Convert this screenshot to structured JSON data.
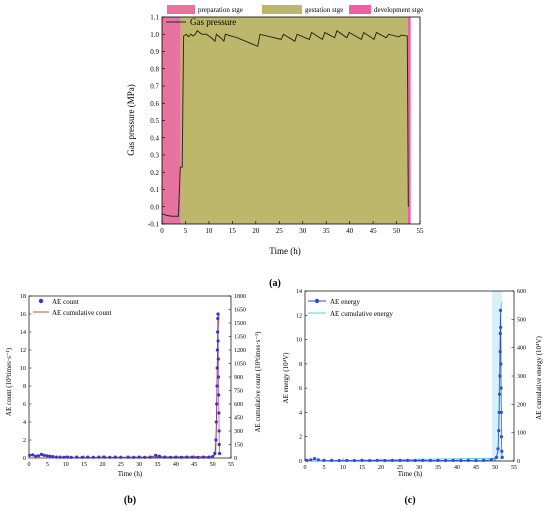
{
  "chart_data": [
    {
      "id": "a",
      "type": "line",
      "caption": "(a)",
      "xlabel": "Time (h)",
      "ylabel": "Gas pressure (MPa)",
      "xlim": [
        0,
        55
      ],
      "ylim": [
        -0.1,
        1.1
      ],
      "xticks": [
        "0",
        "5",
        "10",
        "15",
        "20",
        "25",
        "30",
        "35",
        "40",
        "45",
        "50",
        "55"
      ],
      "yticks": [
        "-0.1",
        "0.0",
        "0.1",
        "0.2",
        "0.3",
        "0.4",
        "0.5",
        "0.6",
        "0.7",
        "0.8",
        "0.9",
        "1.0",
        "1.1"
      ],
      "stages": [
        {
          "label": "preparation stge",
          "x0": 0,
          "x1": 4,
          "color": "#e8739e"
        },
        {
          "label": "gestation stge",
          "x0": 4,
          "x1": 52.4,
          "color": "#bdb76b"
        },
        {
          "label": "development stge",
          "x0": 52.4,
          "x1": 53,
          "color": "#ee5fa7"
        }
      ],
      "series": [
        {
          "name": "Gas pressure",
          "color": "#2a2a1a",
          "points": [
            [
              0,
              -0.04
            ],
            [
              1,
              -0.05
            ],
            [
              2,
              -0.055
            ],
            [
              3.5,
              -0.055
            ],
            [
              3.9,
              0.23
            ],
            [
              4.3,
              0.23
            ],
            [
              4.6,
              0.99
            ],
            [
              5.2,
              1.0
            ],
            [
              5.6,
              0.985
            ],
            [
              6.2,
              1.0
            ],
            [
              6.6,
              0.99
            ],
            [
              7.1,
              1.0
            ],
            [
              7.5,
              1.02
            ],
            [
              8.5,
              1.0
            ],
            [
              9.5,
              1.0
            ],
            [
              10.5,
              0.98
            ],
            [
              11.3,
              0.96
            ],
            [
              11.6,
              1.0
            ],
            [
              12.5,
              0.98
            ],
            [
              13.2,
              0.96
            ],
            [
              13.5,
              1.0
            ],
            [
              16,
              0.98
            ],
            [
              20.4,
              0.93
            ],
            [
              20.9,
              1.0
            ],
            [
              25.4,
              0.97
            ],
            [
              25.9,
              1.0
            ],
            [
              28.3,
              0.96
            ],
            [
              28.8,
              1.0
            ],
            [
              31.4,
              0.97
            ],
            [
              31.9,
              1.01
            ],
            [
              34.2,
              0.97
            ],
            [
              34.7,
              1.01
            ],
            [
              36.8,
              0.98
            ],
            [
              37.3,
              1.02
            ],
            [
              39.4,
              0.98
            ],
            [
              39.9,
              1.01
            ],
            [
              42.5,
              0.97
            ],
            [
              43.0,
              1.01
            ],
            [
              45.2,
              0.97
            ],
            [
              45.7,
              1.01
            ],
            [
              47.8,
              0.98
            ],
            [
              48.3,
              1.0
            ],
            [
              50.5,
              0.985
            ],
            [
              51.0,
              0.995
            ],
            [
              52.3,
              0.99
            ],
            [
              52.5,
              0.0
            ]
          ]
        }
      ]
    },
    {
      "id": "b",
      "type": "scatter",
      "caption": "(b)",
      "xlabel": "Time (h)",
      "ylabel": "AE count (10³times·s⁻¹)",
      "y2label": "AE cumulative count (10³times·s⁻¹)",
      "xlim": [
        0,
        55
      ],
      "ylim": [
        0,
        18
      ],
      "y2lim": [
        0,
        1800
      ],
      "xticks": [
        "0",
        "5",
        "10",
        "15",
        "20",
        "25",
        "30",
        "35",
        "40",
        "45",
        "50",
        "55"
      ],
      "yticks": [
        "0",
        "2",
        "4",
        "6",
        "8",
        "10",
        "12",
        "14",
        "16",
        "18"
      ],
      "y2ticks": [
        "0",
        "150",
        "300",
        "450",
        "600",
        "750",
        "900",
        "1050",
        "1200",
        "1350",
        "1500",
        "1650",
        "1800"
      ],
      "series": [
        {
          "name": "AE count",
          "color": "#3535c8",
          "marker": "circle",
          "points": [
            [
              0.2,
              0.3
            ],
            [
              1,
              0.35
            ],
            [
              1.8,
              0.2
            ],
            [
              2.6,
              0.25
            ],
            [
              3.4,
              0.4
            ],
            [
              4.1,
              0.3
            ],
            [
              4.9,
              0.25
            ],
            [
              5.7,
              0.2
            ],
            [
              6.5,
              0.15
            ],
            [
              7.5,
              0.1
            ],
            [
              8.5,
              0.1
            ],
            [
              9.5,
              0.08
            ],
            [
              10.5,
              0.1
            ],
            [
              11.5,
              0.08
            ],
            [
              13,
              0.1
            ],
            [
              14.5,
              0.08
            ],
            [
              16,
              0.1
            ],
            [
              17.5,
              0.08
            ],
            [
              19,
              0.1
            ],
            [
              20.5,
              0.1
            ],
            [
              22,
              0.08
            ],
            [
              23.5,
              0.1
            ],
            [
              25,
              0.08
            ],
            [
              27,
              0.1
            ],
            [
              28.5,
              0.08
            ],
            [
              30,
              0.1
            ],
            [
              31.5,
              0.08
            ],
            [
              33,
              0.1
            ],
            [
              34.5,
              0.3
            ],
            [
              35.5,
              0.2
            ],
            [
              37,
              0.1
            ],
            [
              38.5,
              0.08
            ],
            [
              40,
              0.1
            ],
            [
              41.5,
              0.08
            ],
            [
              43,
              0.1
            ],
            [
              44.5,
              0.1
            ],
            [
              46,
              0.08
            ],
            [
              47.5,
              0.1
            ],
            [
              49,
              0.1
            ],
            [
              50,
              0.15
            ],
            [
              50.6,
              0.5
            ],
            [
              50.9,
              2
            ],
            [
              51.0,
              4
            ],
            [
              51.1,
              6
            ],
            [
              51.2,
              8
            ],
            [
              51.25,
              10
            ],
            [
              51.3,
              12
            ],
            [
              51.35,
              14
            ],
            [
              51.4,
              15.5
            ],
            [
              51.45,
              16
            ],
            [
              51.5,
              13
            ],
            [
              51.55,
              11
            ],
            [
              51.6,
              9
            ],
            [
              51.65,
              7
            ],
            [
              51.7,
              5
            ],
            [
              51.75,
              3
            ],
            [
              51.8,
              1.5
            ],
            [
              51.9,
              0.5
            ]
          ]
        },
        {
          "name": "AE cumulative count",
          "color": "#c0503a",
          "points": [
            [
              0,
              0
            ],
            [
              50,
              15
            ],
            [
              50.8,
              40
            ],
            [
              51,
              300
            ],
            [
              51.2,
              800
            ],
            [
              51.4,
              1300
            ],
            [
              51.6,
              1560
            ],
            [
              51.8,
              1600
            ]
          ]
        }
      ]
    },
    {
      "id": "c",
      "type": "scatter",
      "caption": "(c)",
      "xlabel": "Time (h)",
      "ylabel": "AE energy (10⁴V)",
      "y2label": "AE cumulative energy (10⁴V)",
      "xlim": [
        0,
        55
      ],
      "ylim": [
        0,
        14
      ],
      "y2lim": [
        0,
        600
      ],
      "xticks": [
        "0",
        "5",
        "10",
        "15",
        "20",
        "25",
        "30",
        "35",
        "40",
        "45",
        "50",
        "55"
      ],
      "yticks": [
        "0",
        "2",
        "4",
        "6",
        "8",
        "10",
        "12",
        "14"
      ],
      "y2ticks": [
        "0",
        "100",
        "200",
        "300",
        "400",
        "500",
        "600"
      ],
      "series": [
        {
          "name": "AE energy",
          "color": "#2b4fd6",
          "marker": "circle",
          "points": [
            [
              0.5,
              0.05
            ],
            [
              1.5,
              0.1
            ],
            [
              2.5,
              0.2
            ],
            [
              3.5,
              0.1
            ],
            [
              5,
              0.05
            ],
            [
              7,
              0.05
            ],
            [
              9,
              0.04
            ],
            [
              11,
              0.05
            ],
            [
              13,
              0.04
            ],
            [
              15,
              0.05
            ],
            [
              17,
              0.04
            ],
            [
              19,
              0.05
            ],
            [
              21,
              0.04
            ],
            [
              23,
              0.05
            ],
            [
              25,
              0.04
            ],
            [
              27,
              0.05
            ],
            [
              29,
              0.04
            ],
            [
              31,
              0.05
            ],
            [
              33,
              0.04
            ],
            [
              35,
              0.05
            ],
            [
              37,
              0.04
            ],
            [
              39,
              0.05
            ],
            [
              41,
              0.04
            ],
            [
              43,
              0.05
            ],
            [
              45,
              0.04
            ],
            [
              47,
              0.05
            ],
            [
              49,
              0.1
            ],
            [
              50.4,
              0.3
            ],
            [
              50.8,
              1
            ],
            [
              51.0,
              2.5
            ],
            [
              51.1,
              4
            ],
            [
              51.2,
              5.5
            ],
            [
              51.3,
              7
            ],
            [
              51.35,
              9
            ],
            [
              51.4,
              10.5
            ],
            [
              51.45,
              12.4
            ],
            [
              51.5,
              11
            ],
            [
              51.55,
              8
            ],
            [
              51.6,
              6
            ],
            [
              51.65,
              4
            ],
            [
              51.7,
              2
            ],
            [
              51.8,
              0.8
            ],
            [
              51.9,
              0.3
            ]
          ]
        },
        {
          "name": "AE cumulative energy",
          "color": "#5cc8e8",
          "points": [
            [
              0,
              0
            ],
            [
              50,
              10
            ],
            [
              50.8,
              30
            ],
            [
              51,
              150
            ],
            [
              51.2,
              350
            ],
            [
              51.4,
              500
            ],
            [
              51.6,
              540
            ],
            [
              51.8,
              560
            ]
          ]
        }
      ]
    }
  ],
  "legends": {
    "a_series": "Gas pressure"
  }
}
